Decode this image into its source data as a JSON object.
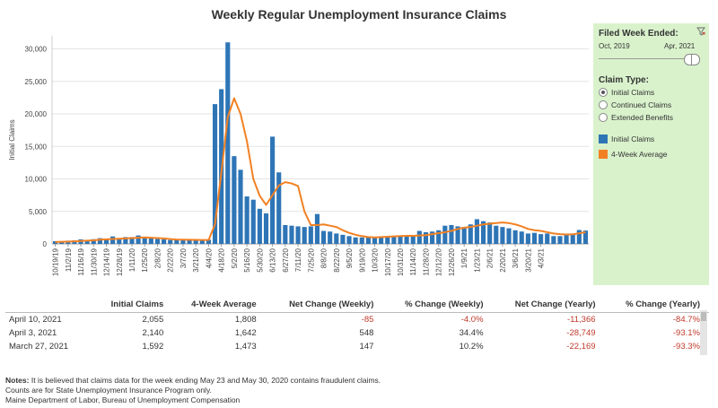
{
  "title": "Weekly Regular Unemployment Insurance Claims",
  "colors": {
    "bar": "#2e75b6",
    "line": "#f28123",
    "panel": "#d9f2cc",
    "negative": "#c0392b"
  },
  "filter_panel": {
    "header": "Filed Week Ended:",
    "funnel_icon": "filter-clear-icon",
    "range_start": "Oct, 2019",
    "range_end": "Apr, 2021",
    "claim_type_header": "Claim Type:",
    "options": [
      "Initial Claims",
      "Continued Claims",
      "Extended Benefits"
    ],
    "selected_option": "Initial Claims",
    "legend": [
      "Initial Claims",
      "4-Week Average"
    ]
  },
  "chart_data": {
    "type": "bar",
    "ylabel": "Initial Claims",
    "ylim": [
      0,
      32000
    ],
    "yticks": [
      "0",
      "5,000",
      "10,000",
      "15,000",
      "20,000",
      "25,000",
      "30,000"
    ],
    "grid": true,
    "xtick_labels": [
      "10/19/19",
      "11/2/19",
      "11/16/19",
      "11/30/19",
      "12/14/19",
      "12/28/19",
      "1/11/20",
      "1/25/20",
      "2/8/20",
      "2/22/20",
      "3/7/20",
      "3/21/20",
      "4/4/20",
      "4/18/20",
      "5/2/20",
      "5/16/20",
      "5/30/20",
      "6/13/20",
      "6/27/20",
      "7/11/20",
      "7/25/20",
      "8/8/20",
      "8/22/20",
      "9/5/20",
      "9/19/20",
      "10/3/20",
      "10/17/20",
      "10/31/20",
      "11/14/20",
      "11/28/20",
      "12/12/20",
      "12/26/20",
      "1/9/21",
      "1/23/21",
      "2/6/21",
      "2/20/21",
      "3/6/21",
      "3/20/21",
      "4/3/21"
    ],
    "series": [
      {
        "name": "Initial Claims",
        "type": "bar",
        "values": [
          420,
          380,
          500,
          550,
          700,
          620,
          720,
          880,
          750,
          1150,
          800,
          1050,
          1050,
          1300,
          1050,
          850,
          750,
          700,
          600,
          600,
          580,
          700,
          600,
          600,
          650,
          21500,
          23800,
          31000,
          13500,
          11400,
          7300,
          6800,
          5400,
          4700,
          16500,
          11000,
          2900,
          2800,
          2700,
          2600,
          2700,
          4600,
          2000,
          1900,
          1600,
          1400,
          1200,
          1000,
          1000,
          1000,
          1100,
          1100,
          1100,
          1200,
          1200,
          1300,
          1200,
          2000,
          1800,
          1900,
          2100,
          2800,
          2900,
          2700,
          2600,
          3000,
          3800,
          3500,
          3300,
          2800,
          2600,
          2400,
          2100,
          1900,
          1600,
          1700,
          1500,
          1600,
          1200,
          1200,
          1500,
          1592,
          2140,
          2055
        ]
      },
      {
        "name": "4-Week Average",
        "type": "line",
        "values": [
          300,
          320,
          350,
          400,
          450,
          500,
          550,
          650,
          700,
          750,
          800,
          850,
          900,
          950,
          1000,
          950,
          900,
          850,
          750,
          680,
          650,
          630,
          620,
          600,
          600,
          3000,
          11000,
          19500,
          22400,
          20000,
          15800,
          10000,
          7400,
          6000,
          7500,
          9000,
          9500,
          9300,
          8900,
          5000,
          2900,
          2900,
          3000,
          2800,
          2600,
          2100,
          1700,
          1400,
          1200,
          1050,
          1000,
          1050,
          1100,
          1150,
          1200,
          1250,
          1250,
          1300,
          1350,
          1500,
          1650,
          1800,
          2000,
          2300,
          2500,
          2600,
          2800,
          3000,
          3100,
          3200,
          3300,
          3200,
          3000,
          2700,
          2300,
          2100,
          2000,
          1800,
          1600,
          1500,
          1450,
          1473,
          1642,
          1808
        ]
      }
    ]
  },
  "table": {
    "columns": [
      "",
      "Initial Claims",
      "4-Week Average",
      "Net Change (Weekly)",
      "% Change (Weekly)",
      "Net Change (Yearly)",
      "% Change (Yearly)"
    ],
    "rows": [
      [
        "April 10, 2021",
        "2,055",
        "1,808",
        "-85",
        "-4.0%",
        "-11,366",
        "-84.7%"
      ],
      [
        "April 3, 2021",
        "2,140",
        "1,642",
        "548",
        "34.4%",
        "-28,749",
        "-93.1%"
      ],
      [
        "March 27, 2021",
        "1,592",
        "1,473",
        "147",
        "10.2%",
        "-22,169",
        "-93.3%"
      ]
    ]
  },
  "notes": {
    "label": "Notes:",
    "line1": "It is believed that claims data for the week ending May 23 and May 30, 2020 contains fraudulent claims.",
    "line2": "Counts are for State Unemployment Insurance Program only.",
    "line3": "Maine Department of Labor, Bureau of Unemployment Compensation"
  }
}
